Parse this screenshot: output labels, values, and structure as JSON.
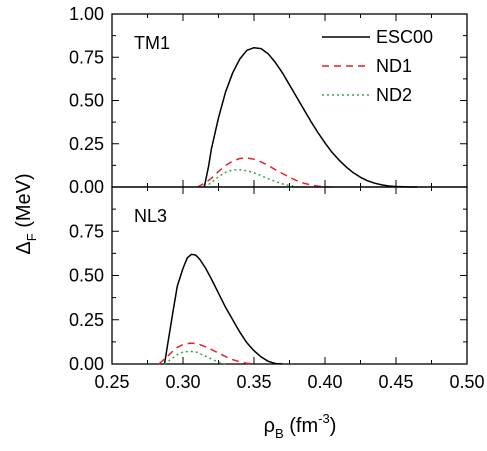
{
  "chart_data": {
    "type": "line",
    "x_axis": {
      "label_main": "ρ",
      "label_sub": "B",
      "label_unit": " (fm",
      "label_exp": "-3",
      "label_close": ")",
      "range": [
        0.25,
        0.5
      ],
      "ticks": [
        "0.25",
        "0.30",
        "0.35",
        "0.40",
        "0.45",
        "0.50"
      ]
    },
    "y_axis": {
      "label_main": "Δ",
      "label_sub": "F",
      "label_unit": " (MeV)"
    },
    "legend": {
      "placement": "top-right",
      "entries": [
        "ESC00",
        "ND1",
        "ND2"
      ]
    },
    "series_styles": {
      "ESC00": {
        "color": "#000000",
        "dash": ""
      },
      "ND1": {
        "color": "#e0242a",
        "dash": "7,5"
      },
      "ND2": {
        "color": "#3aa53a",
        "dash": "2,3"
      }
    },
    "panels": [
      {
        "label": "TM1",
        "y_range": [
          0.0,
          1.0
        ],
        "y_ticks": [
          "1.00",
          "0.75",
          "0.50",
          "0.25",
          "0.00"
        ],
        "y_tick_values": [
          1.0,
          0.75,
          0.5,
          0.25,
          0.0
        ],
        "series": [
          {
            "name": "ESC00",
            "x": [
              0.315,
              0.318,
              0.32,
              0.325,
              0.33,
              0.335,
              0.34,
              0.345,
              0.35,
              0.355,
              0.36,
              0.365,
              0.37,
              0.375,
              0.38,
              0.385,
              0.39,
              0.395,
              0.4,
              0.405,
              0.41,
              0.415,
              0.42,
              0.425,
              0.43,
              0.435,
              0.44,
              0.445,
              0.45,
              0.455,
              0.46,
              0.465
            ],
            "y": [
              0.0,
              0.12,
              0.22,
              0.4,
              0.55,
              0.66,
              0.74,
              0.79,
              0.805,
              0.8,
              0.77,
              0.72,
              0.66,
              0.59,
              0.52,
              0.45,
              0.38,
              0.315,
              0.255,
              0.2,
              0.155,
              0.115,
              0.082,
              0.056,
              0.036,
              0.022,
              0.012,
              0.006,
              0.003,
              0.001,
              0.0,
              0.0
            ]
          },
          {
            "name": "ND1",
            "x": [
              0.31,
              0.315,
              0.32,
              0.325,
              0.33,
              0.335,
              0.34,
              0.345,
              0.35,
              0.355,
              0.36,
              0.365,
              0.37,
              0.375,
              0.38,
              0.385,
              0.39,
              0.395,
              0.4,
              0.405
            ],
            "y": [
              0.0,
              0.02,
              0.05,
              0.09,
              0.125,
              0.15,
              0.165,
              0.168,
              0.16,
              0.145,
              0.125,
              0.1,
              0.078,
              0.056,
              0.037,
              0.022,
              0.012,
              0.005,
              0.001,
              0.0
            ]
          },
          {
            "name": "ND2",
            "x": [
              0.315,
              0.32,
              0.325,
              0.33,
              0.335,
              0.34,
              0.345,
              0.35,
              0.355,
              0.36,
              0.365,
              0.37,
              0.375,
              0.38,
              0.385
            ],
            "y": [
              0.0,
              0.025,
              0.06,
              0.085,
              0.098,
              0.1,
              0.094,
              0.082,
              0.066,
              0.048,
              0.032,
              0.018,
              0.008,
              0.002,
              0.0
            ]
          }
        ]
      },
      {
        "label": "NL3",
        "y_range": [
          0.0,
          1.0
        ],
        "y_ticks": [
          "0.75",
          "0.50",
          "0.25",
          "0.00"
        ],
        "y_tick_values": [
          0.75,
          0.5,
          0.25,
          0.0
        ],
        "series": [
          {
            "name": "ESC00",
            "x": [
              0.287,
              0.29,
              0.293,
              0.296,
              0.3,
              0.303,
              0.306,
              0.309,
              0.312,
              0.316,
              0.32,
              0.325,
              0.33,
              0.335,
              0.34,
              0.345,
              0.35,
              0.355,
              0.36,
              0.365,
              0.37
            ],
            "y": [
              0.0,
              0.15,
              0.3,
              0.44,
              0.54,
              0.6,
              0.62,
              0.615,
              0.59,
              0.54,
              0.48,
              0.4,
              0.32,
              0.25,
              0.18,
              0.12,
              0.075,
              0.04,
              0.015,
              0.003,
              0.0
            ]
          },
          {
            "name": "ND1",
            "x": [
              0.283,
              0.29,
              0.295,
              0.3,
              0.305,
              0.31,
              0.315,
              0.32,
              0.325,
              0.33,
              0.335,
              0.34,
              0.345,
              0.35
            ],
            "y": [
              0.0,
              0.05,
              0.09,
              0.11,
              0.118,
              0.115,
              0.1,
              0.082,
              0.062,
              0.042,
              0.025,
              0.012,
              0.004,
              0.0
            ]
          },
          {
            "name": "ND2",
            "x": [
              0.287,
              0.292,
              0.297,
              0.3,
              0.305,
              0.31,
              0.315,
              0.32,
              0.325,
              0.33
            ],
            "y": [
              0.0,
              0.03,
              0.058,
              0.068,
              0.072,
              0.066,
              0.048,
              0.028,
              0.01,
              0.0
            ]
          }
        ]
      }
    ]
  }
}
